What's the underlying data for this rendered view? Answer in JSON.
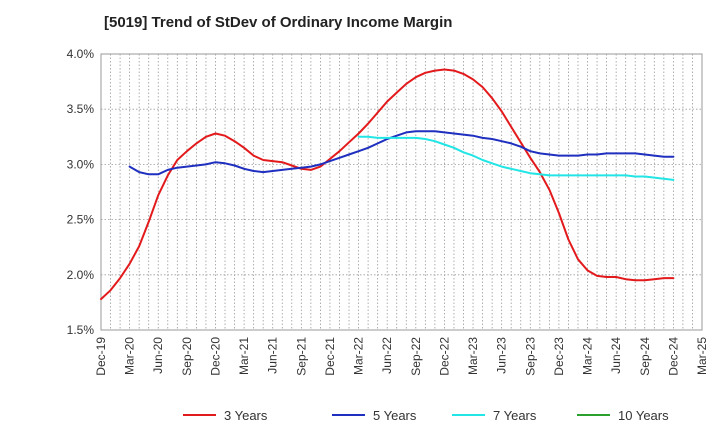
{
  "chart_data": {
    "type": "line",
    "title": "[5019]  Trend of StDev of Ordinary Income Margin",
    "x_labels": [
      "Dec-19",
      "Mar-20",
      "Jun-20",
      "Sep-20",
      "Dec-20",
      "Mar-21",
      "Jun-21",
      "Sep-21",
      "Dec-21",
      "Mar-22",
      "Jun-22",
      "Sep-22",
      "Dec-22",
      "Mar-23",
      "Jun-23",
      "Sep-23",
      "Dec-23",
      "Mar-24",
      "Jun-24",
      "Sep-24",
      "Dec-24",
      "Mar-25"
    ],
    "y_ticks": [
      "1.5%",
      "2.0%",
      "2.5%",
      "3.0%",
      "3.5%",
      "4.0%"
    ],
    "ylim": [
      1.5,
      4.0
    ],
    "grid": true,
    "legend_position": "bottom",
    "series": [
      {
        "name": "3 Years",
        "color": "#e31a1c",
        "x": [
          "Dec-19",
          "Jan-20",
          "Feb-20",
          "Mar-20",
          "Apr-20",
          "May-20",
          "Jun-20",
          "Jul-20",
          "Aug-20",
          "Sep-20",
          "Oct-20",
          "Nov-20",
          "Dec-20",
          "Jan-21",
          "Feb-21",
          "Mar-21",
          "Apr-21",
          "May-21",
          "Jun-21",
          "Jul-21",
          "Aug-21",
          "Sep-21",
          "Oct-21",
          "Nov-21",
          "Dec-21",
          "Jan-22",
          "Feb-22",
          "Mar-22",
          "Apr-22",
          "May-22",
          "Jun-22",
          "Jul-22",
          "Aug-22",
          "Sep-22",
          "Oct-22",
          "Nov-22",
          "Dec-22",
          "Jan-23",
          "Feb-23",
          "Mar-23",
          "Apr-23",
          "May-23",
          "Jun-23",
          "Jul-23",
          "Aug-23",
          "Sep-23",
          "Oct-23",
          "Nov-23",
          "Dec-23",
          "Jan-24",
          "Feb-24",
          "Mar-24",
          "Apr-24",
          "May-24",
          "Jun-24",
          "Jul-24",
          "Aug-24",
          "Sep-24",
          "Oct-24",
          "Nov-24",
          "Dec-24"
        ],
        "y": [
          1.78,
          1.86,
          1.97,
          2.1,
          2.26,
          2.48,
          2.72,
          2.9,
          3.04,
          3.12,
          3.19,
          3.25,
          3.28,
          3.26,
          3.21,
          3.15,
          3.08,
          3.04,
          3.03,
          3.02,
          2.99,
          2.96,
          2.95,
          2.98,
          3.05,
          3.12,
          3.2,
          3.28,
          3.37,
          3.47,
          3.57,
          3.65,
          3.73,
          3.79,
          3.83,
          3.85,
          3.86,
          3.85,
          3.82,
          3.77,
          3.7,
          3.6,
          3.48,
          3.34,
          3.2,
          3.06,
          2.93,
          2.77,
          2.56,
          2.32,
          2.14,
          2.04,
          1.99,
          1.98,
          1.98,
          1.96,
          1.95,
          1.95,
          1.96,
          1.97,
          1.97
        ]
      },
      {
        "name": "5 Years",
        "color": "#1f2fbf",
        "x": [
          "Mar-20",
          "Apr-20",
          "May-20",
          "Jun-20",
          "Jul-20",
          "Aug-20",
          "Sep-20",
          "Oct-20",
          "Nov-20",
          "Dec-20",
          "Jan-21",
          "Feb-21",
          "Mar-21",
          "Apr-21",
          "May-21",
          "Jun-21",
          "Jul-21",
          "Aug-21",
          "Sep-21",
          "Oct-21",
          "Nov-21",
          "Dec-21",
          "Jan-22",
          "Feb-22",
          "Mar-22",
          "Apr-22",
          "May-22",
          "Jun-22",
          "Jul-22",
          "Aug-22",
          "Sep-22",
          "Oct-22",
          "Nov-22",
          "Dec-22",
          "Jan-23",
          "Feb-23",
          "Mar-23",
          "Apr-23",
          "May-23",
          "Jun-23",
          "Jul-23",
          "Aug-23",
          "Sep-23",
          "Oct-23",
          "Nov-23",
          "Dec-23",
          "Jan-24",
          "Feb-24",
          "Mar-24",
          "Apr-24",
          "May-24",
          "Jun-24",
          "Jul-24",
          "Aug-24",
          "Sep-24",
          "Oct-24",
          "Nov-24",
          "Dec-24"
        ],
        "y": [
          2.98,
          2.93,
          2.91,
          2.91,
          2.95,
          2.97,
          2.98,
          2.99,
          3.0,
          3.02,
          3.01,
          2.99,
          2.96,
          2.94,
          2.93,
          2.94,
          2.95,
          2.96,
          2.97,
          2.98,
          3.0,
          3.03,
          3.06,
          3.09,
          3.12,
          3.15,
          3.19,
          3.23,
          3.26,
          3.29,
          3.3,
          3.3,
          3.3,
          3.29,
          3.28,
          3.27,
          3.26,
          3.24,
          3.23,
          3.21,
          3.19,
          3.16,
          3.12,
          3.1,
          3.09,
          3.08,
          3.08,
          3.08,
          3.09,
          3.09,
          3.1,
          3.1,
          3.1,
          3.1,
          3.09,
          3.08,
          3.07,
          3.07
        ]
      },
      {
        "name": "7 Years",
        "color": "#22e5e5",
        "x": [
          "Mar-22",
          "Apr-22",
          "May-22",
          "Jun-22",
          "Jul-22",
          "Aug-22",
          "Sep-22",
          "Oct-22",
          "Nov-22",
          "Dec-22",
          "Jan-23",
          "Feb-23",
          "Mar-23",
          "Apr-23",
          "May-23",
          "Jun-23",
          "Jul-23",
          "Aug-23",
          "Sep-23",
          "Oct-23",
          "Nov-23",
          "Dec-23",
          "Jan-24",
          "Feb-24",
          "Mar-24",
          "Apr-24",
          "May-24",
          "Jun-24",
          "Jul-24",
          "Aug-24",
          "Sep-24",
          "Oct-24",
          "Nov-24",
          "Dec-24"
        ],
        "y": [
          3.25,
          3.25,
          3.24,
          3.24,
          3.24,
          3.24,
          3.24,
          3.23,
          3.21,
          3.18,
          3.15,
          3.11,
          3.08,
          3.04,
          3.01,
          2.98,
          2.96,
          2.94,
          2.92,
          2.91,
          2.9,
          2.9,
          2.9,
          2.9,
          2.9,
          2.9,
          2.9,
          2.9,
          2.9,
          2.89,
          2.89,
          2.88,
          2.87,
          2.86
        ]
      },
      {
        "name": "10 Years",
        "color": "#2ca02c",
        "x": [],
        "y": []
      }
    ]
  }
}
